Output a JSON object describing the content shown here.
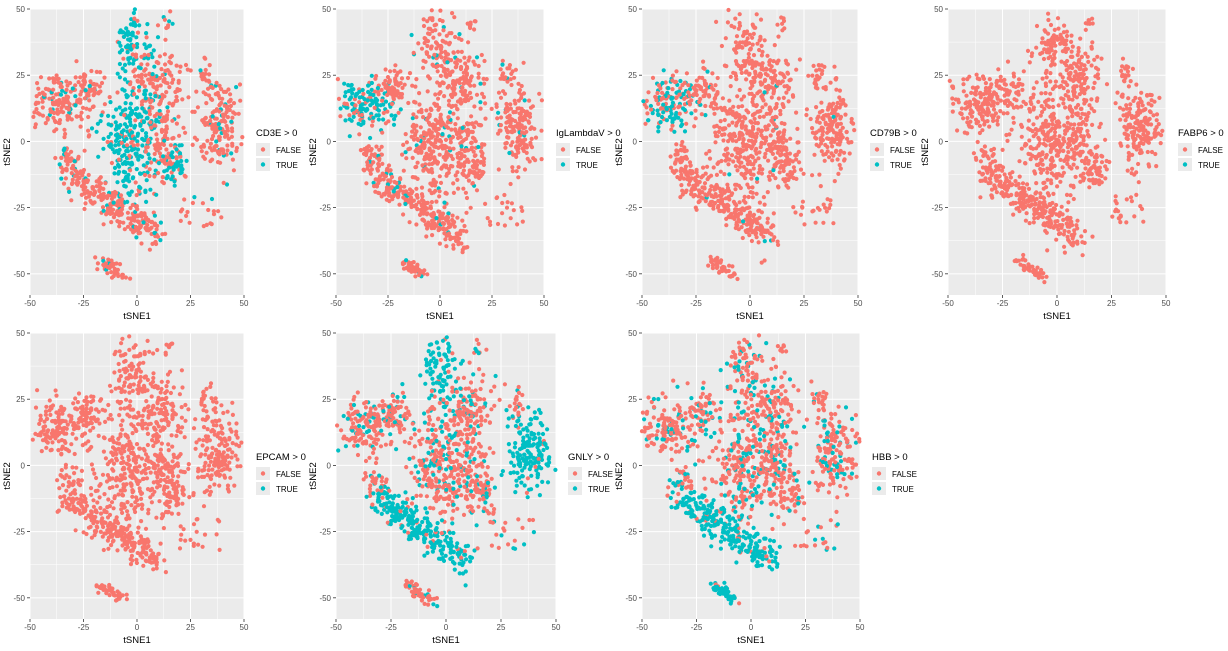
{
  "figure": {
    "panel_background": "#ebebeb",
    "gridline_color": "#ffffff"
  },
  "chart_data": [
    {
      "type": "scatter",
      "panel": "CD3E",
      "xlabel": "tSNE1",
      "ylabel": "tSNE2",
      "xlim": [
        -50,
        50
      ],
      "ylim": [
        -58,
        50
      ],
      "xticks": [
        "-50",
        "-25",
        "0",
        "25",
        "50"
      ],
      "yticks": [
        "50",
        "25",
        "0",
        "-25",
        "-50"
      ],
      "legend": {
        "title": "CD3E > 0",
        "placement": "right",
        "entries": [
          {
            "label": "FALSE",
            "color": "#f8766d"
          },
          {
            "label": "TRUE",
            "color": "#00bfc4"
          }
        ]
      },
      "true_regions": [
        "top-center-cluster",
        "center-cluster",
        "right-center-cluster"
      ],
      "true_fraction": 0.35,
      "seed": 11
    },
    {
      "type": "scatter",
      "panel": "IgLambdaV",
      "xlabel": "tSNE1",
      "ylabel": "tSNE2",
      "xlim": [
        -50,
        50
      ],
      "ylim": [
        -58,
        50
      ],
      "xticks": [
        "-50",
        "-25",
        "0",
        "25",
        "50"
      ],
      "yticks": [
        "50",
        "25",
        "0",
        "-25",
        "-50"
      ],
      "legend": {
        "title": "IgLambdaV > 0",
        "placement": "right",
        "entries": [
          {
            "label": "FALSE",
            "color": "#f8766d"
          },
          {
            "label": "TRUE",
            "color": "#00bfc4"
          }
        ]
      },
      "true_regions": [
        "left-cluster"
      ],
      "true_fraction": 0.18,
      "seed": 23
    },
    {
      "type": "scatter",
      "panel": "CD79B",
      "xlabel": "tSNE1",
      "ylabel": "tSNE2",
      "xlim": [
        -50,
        50
      ],
      "ylim": [
        -58,
        50
      ],
      "xticks": [
        "-50",
        "-25",
        "0",
        "25",
        "50"
      ],
      "yticks": [
        "50",
        "25",
        "0",
        "-25",
        "-50"
      ],
      "legend": {
        "title": "CD79B > 0",
        "placement": "right",
        "entries": [
          {
            "label": "FALSE",
            "color": "#f8766d"
          },
          {
            "label": "TRUE",
            "color": "#00bfc4"
          }
        ]
      },
      "true_regions": [
        "left-cluster"
      ],
      "true_fraction": 0.04,
      "seed": 37
    },
    {
      "type": "scatter",
      "panel": "FABP6",
      "xlabel": "tSNE1",
      "ylabel": "tSNE2",
      "xlim": [
        -50,
        50
      ],
      "ylim": [
        -58,
        50
      ],
      "xticks": [
        "-50",
        "-25",
        "0",
        "25",
        "50"
      ],
      "yticks": [
        "50",
        "25",
        "0",
        "-25",
        "-50"
      ],
      "legend": {
        "title": "FABP6 > 0",
        "placement": "right",
        "entries": [
          {
            "label": "FALSE",
            "color": "#f8766d"
          },
          {
            "label": "TRUE",
            "color": "#00bfc4"
          }
        ]
      },
      "true_regions": [],
      "true_fraction": 0.0,
      "seed": 41
    },
    {
      "type": "scatter",
      "panel": "EPCAM",
      "xlabel": "tSNE1",
      "ylabel": "tSNE2",
      "xlim": [
        -50,
        50
      ],
      "ylim": [
        -58,
        50
      ],
      "xticks": [
        "-50",
        "-25",
        "0",
        "25",
        "50"
      ],
      "yticks": [
        "50",
        "25",
        "0",
        "-25",
        "-50"
      ],
      "legend": {
        "title": "EPCAM > 0",
        "placement": "right",
        "entries": [
          {
            "label": "FALSE",
            "color": "#f8766d"
          },
          {
            "label": "TRUE",
            "color": "#00bfc4"
          }
        ]
      },
      "true_regions": [],
      "true_fraction": 0.0,
      "seed": 53
    },
    {
      "type": "scatter",
      "panel": "GNLY",
      "xlabel": "tSNE1",
      "ylabel": "tSNE2",
      "xlim": [
        -50,
        50
      ],
      "ylim": [
        -58,
        50
      ],
      "xticks": [
        "-50",
        "-25",
        "0",
        "25",
        "50"
      ],
      "yticks": [
        "50",
        "25",
        "0",
        "-25",
        "-50"
      ],
      "legend": {
        "title": "GNLY > 0",
        "placement": "right",
        "entries": [
          {
            "label": "FALSE",
            "color": "#f8766d"
          },
          {
            "label": "TRUE",
            "color": "#00bfc4"
          }
        ]
      },
      "true_regions": [
        "top-center-cluster",
        "right-cluster",
        "lower-diagonal-band"
      ],
      "true_fraction": 0.6,
      "seed": 67
    },
    {
      "type": "scatter",
      "panel": "HBB",
      "xlabel": "tSNE1",
      "ylabel": "tSNE2",
      "xlim": [
        -50,
        50
      ],
      "ylim": [
        -58,
        50
      ],
      "xticks": [
        "-50",
        "-25",
        "0",
        "25",
        "50"
      ],
      "yticks": [
        "50",
        "25",
        "0",
        "-25",
        "-50"
      ],
      "legend": {
        "title": "HBB > 0",
        "placement": "right",
        "entries": [
          {
            "label": "FALSE",
            "color": "#f8766d"
          },
          {
            "label": "TRUE",
            "color": "#00bfc4"
          }
        ]
      },
      "true_regions": [
        "lower-diagonal-band",
        "bottom-small-cluster"
      ],
      "true_fraction": 0.62,
      "seed": 79
    }
  ]
}
